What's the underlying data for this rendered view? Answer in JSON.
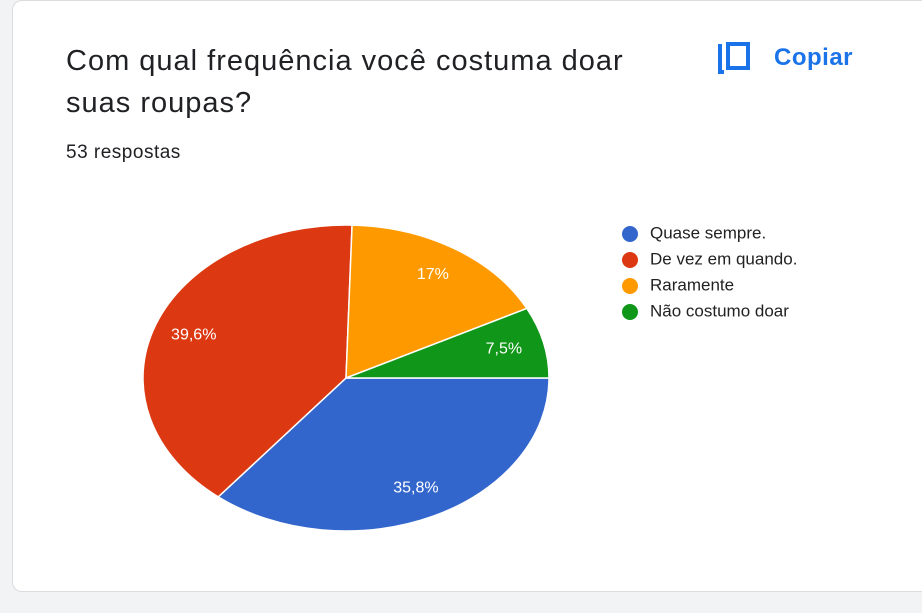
{
  "button": "Copiar",
  "chart_data": {
    "type": "pie",
    "title": "Com qual frequência você costuma doar suas roupas?",
    "subtitle": "53 respostas",
    "categories": [
      "Quase sempre.",
      "De vez em quando.",
      "Raramente",
      "Não costumo doar"
    ],
    "values": [
      35.8,
      39.6,
      17,
      7.5
    ],
    "value_labels": [
      "35,8%",
      "39,6%",
      "17%",
      "7,5%"
    ],
    "colors": [
      "#3366cc",
      "#dc3912",
      "#ff9900",
      "#109618"
    ],
    "legend": "right"
  }
}
